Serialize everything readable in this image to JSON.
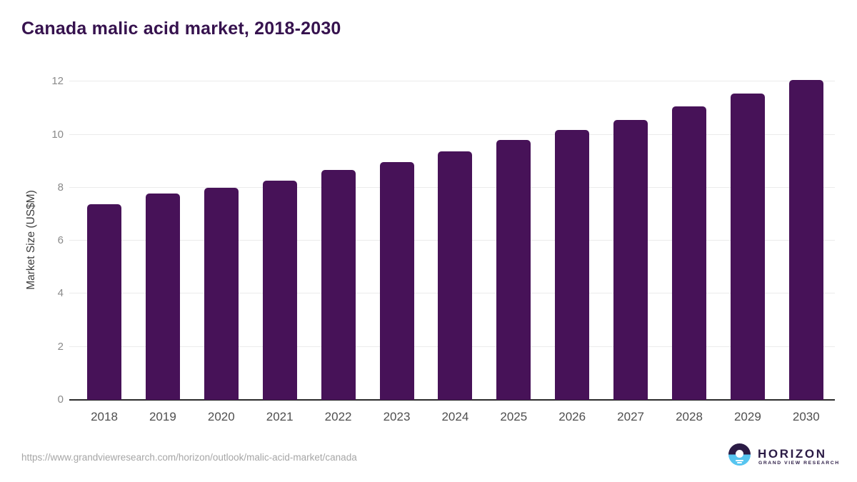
{
  "chart_title": "Canada malic acid market, 2018-2030",
  "chart_data": {
    "type": "bar",
    "title": "Canada malic acid market, 2018-2030",
    "categories": [
      "2018",
      "2019",
      "2020",
      "2021",
      "2022",
      "2023",
      "2024",
      "2025",
      "2026",
      "2027",
      "2028",
      "2029",
      "2030"
    ],
    "values": [
      7.38,
      7.79,
      8.0,
      8.28,
      8.68,
      8.98,
      9.38,
      9.79,
      10.18,
      10.55,
      11.08,
      11.55,
      12.07
    ],
    "xlabel": "",
    "ylabel": "Market Size (US$M)",
    "yticks": [
      0,
      2,
      4,
      6,
      8,
      10,
      12
    ],
    "ylim": [
      0,
      12.55
    ],
    "grid": "horizontal-only",
    "legend": "none",
    "bar_color": "#471258"
  },
  "footer": {
    "source_url": "https://www.grandviewresearch.com/horizon/outlook/malic-acid-market/canada",
    "logo": {
      "name": "HORIZON",
      "tagline": "GRAND VIEW RESEARCH"
    }
  },
  "colors": {
    "title": "#36124e",
    "bar": "#471258",
    "gridline": "#ebebeb",
    "baseline": "#2b2b2b",
    "y_tick_label": "#8a8a8a",
    "x_tick_label": "#4f4f4f",
    "url_text": "#a6a6a6",
    "logo_purple": "#2b1b45",
    "logo_blue": "#56c5f0"
  }
}
